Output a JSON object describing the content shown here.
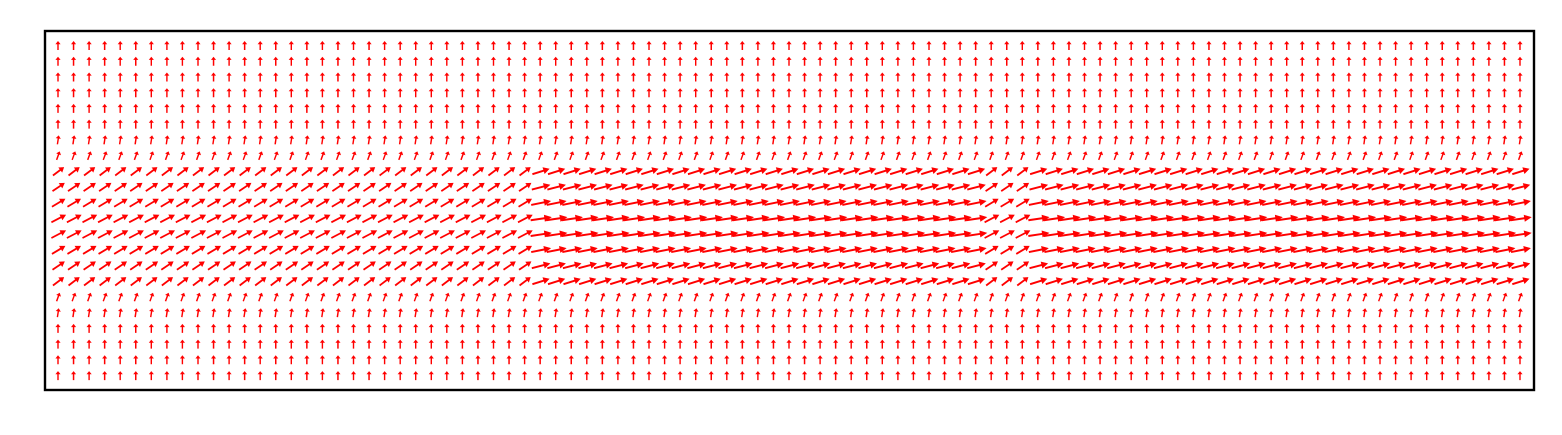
{
  "chart_data": {
    "type": "quiver",
    "title": "",
    "xlabel": "",
    "ylabel": "",
    "axes_ticks": "none",
    "grid": false,
    "legend": "none",
    "arrow_color": "#ff0000",
    "frame_color": "#000000",
    "background": "#ffffff",
    "grid_columns": 95,
    "grid_rows": 22,
    "field_description_rows": {
      "band_rows": [
        8,
        15
      ],
      "outside_band_direction": "up",
      "band_direction": "right-up",
      "strong_segments_columns": [
        [
          31,
          59
        ],
        [
          63,
          94
        ]
      ]
    }
  }
}
